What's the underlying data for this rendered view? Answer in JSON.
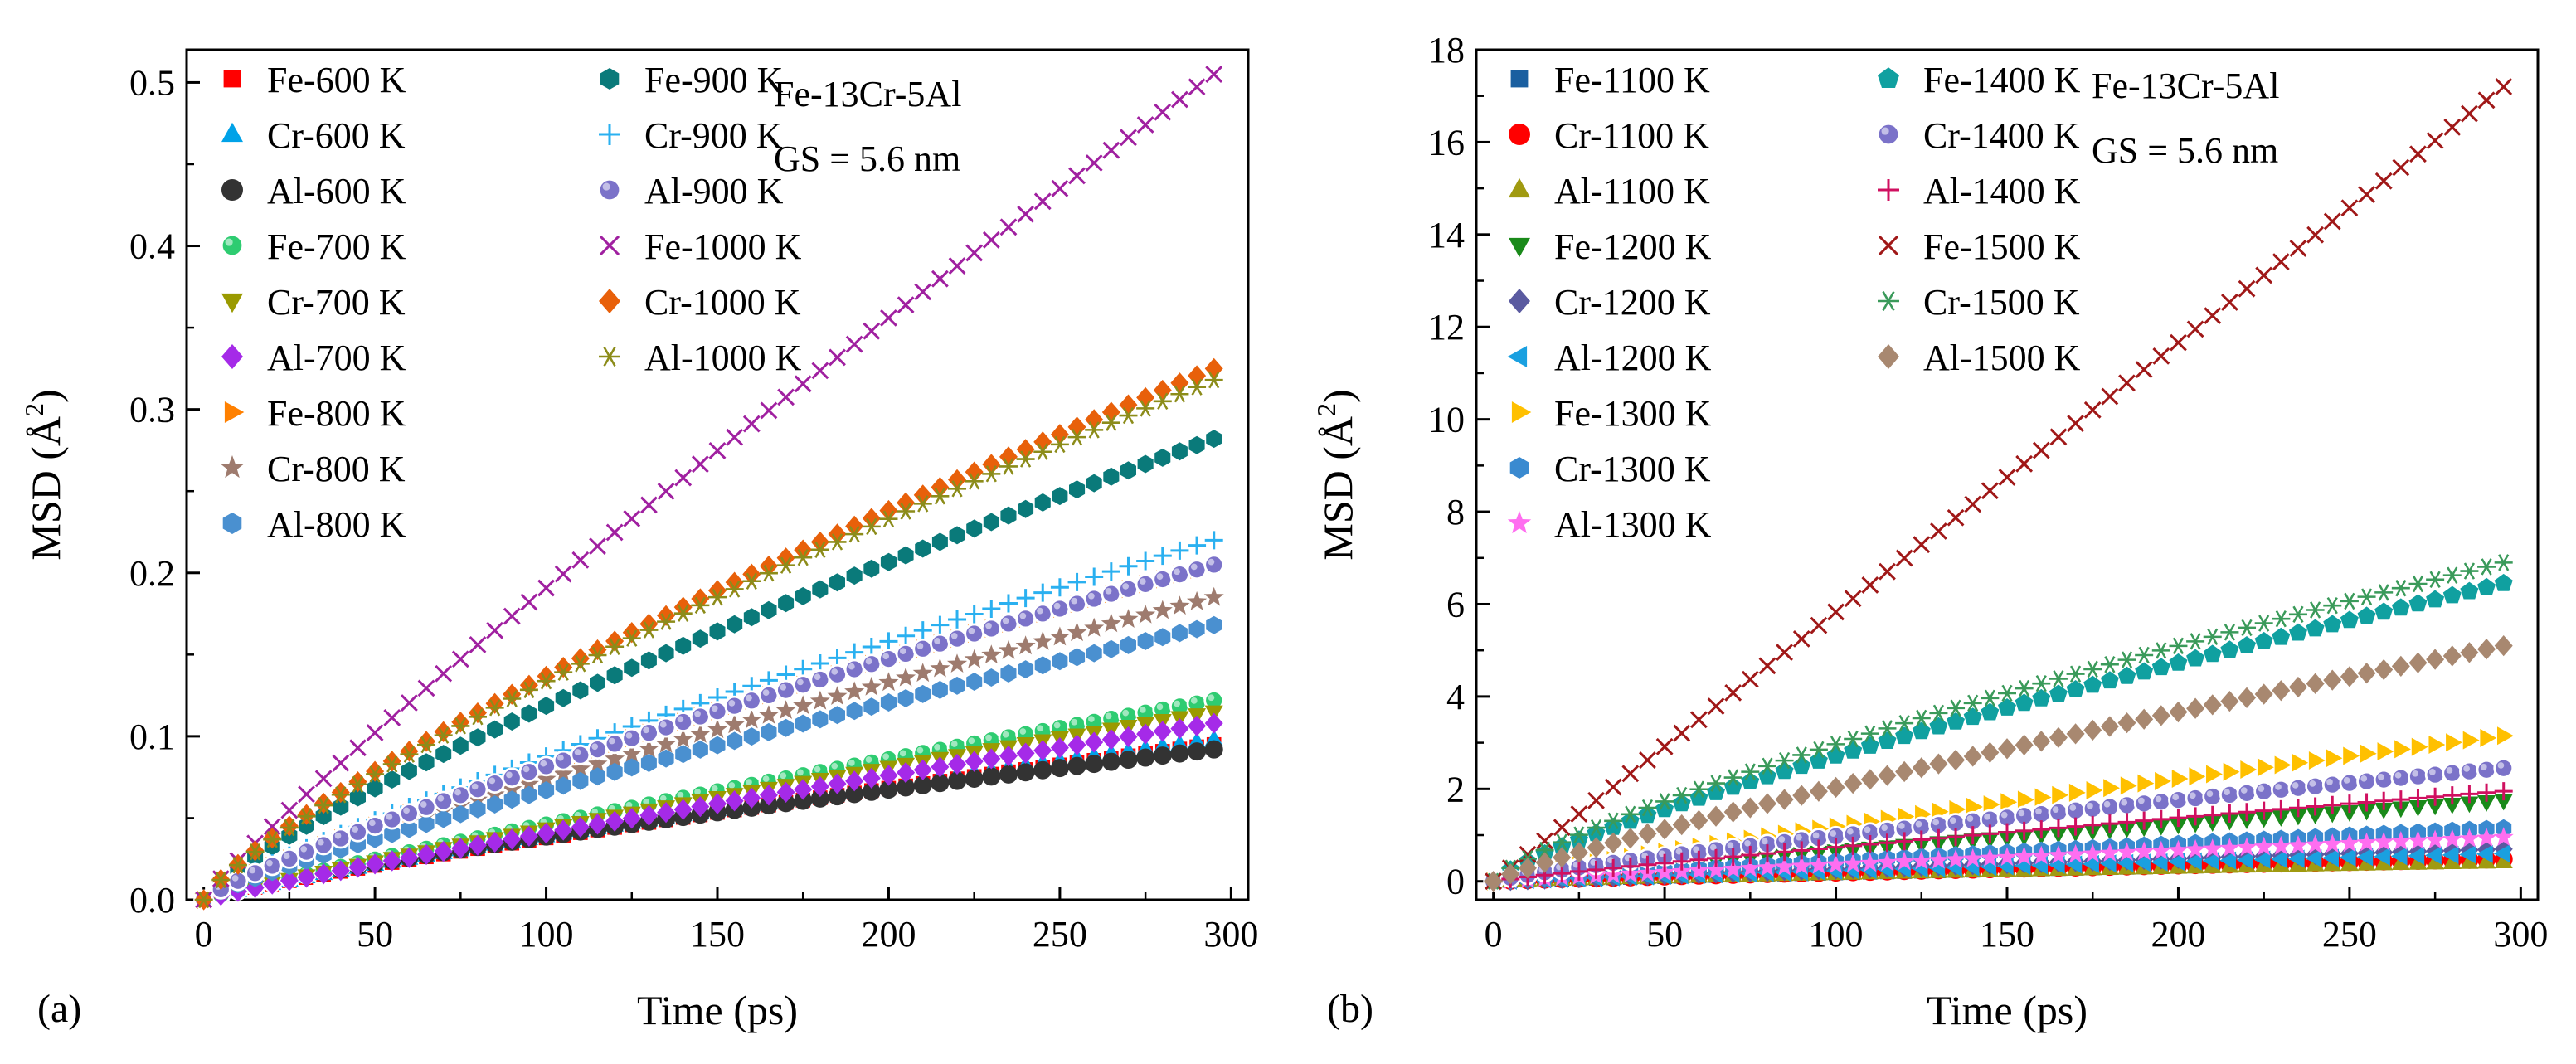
{
  "figure": {
    "panel_labels": [
      "(a)",
      "(b)"
    ]
  },
  "chart_data": [
    {
      "type": "scatter",
      "panel": "(a)",
      "title": "",
      "annotation_lines": [
        "Fe-13Cr-5Al",
        "GS = 5.6 nm"
      ],
      "xlabel": "Time (ps)",
      "ylabel_prefix": "MSD (",
      "ylabel_unit": "Å",
      "ylabel_sup": "2",
      "ylabel_suffix": ")",
      "xlim": [
        -5,
        305
      ],
      "ylim": [
        0,
        0.52
      ],
      "xticks": [
        0,
        50,
        100,
        150,
        200,
        250,
        300
      ],
      "yticks": [
        0.0,
        0.1,
        0.2,
        0.3,
        0.4,
        0.5
      ],
      "ytick_labels": [
        "0.0",
        "0.1",
        "0.2",
        "0.3",
        "0.4",
        "0.5"
      ],
      "x_start": 0,
      "x_end": 295,
      "x_step": 5,
      "legend_position": "top-left",
      "legend_columns": 2,
      "series": [
        {
          "name": "Fe-600 K",
          "marker": "square",
          "color": "#ff0000",
          "final": 0.095,
          "exp": 0.85
        },
        {
          "name": "Cr-600 K",
          "marker": "triangle-up",
          "color": "#00a2e8",
          "final": 0.098,
          "exp": 0.85
        },
        {
          "name": "Al-600 K",
          "marker": "circle",
          "color": "#333333",
          "final": 0.092,
          "exp": 0.8
        },
        {
          "name": "Fe-700 K",
          "marker": "circle-shaded",
          "color": "#2ecc71",
          "final": 0.122,
          "exp": 0.9
        },
        {
          "name": "Cr-700 K",
          "marker": "triangle-down",
          "color": "#9a9a00",
          "final": 0.115,
          "exp": 0.9
        },
        {
          "name": "Al-700 K",
          "marker": "diamond",
          "color": "#a52ae8",
          "final": 0.108,
          "exp": 0.9
        },
        {
          "name": "Fe-800 K",
          "marker": "triangle-right",
          "color": "#ff8000",
          "final": 0.205,
          "exp": 0.85
        },
        {
          "name": "Cr-800 K",
          "marker": "star",
          "color": "#9e7b6e",
          "final": 0.185,
          "exp": 0.85
        },
        {
          "name": "Al-800 K",
          "marker": "hexagon",
          "color": "#4a90d0",
          "final": 0.168,
          "exp": 0.85
        },
        {
          "name": "Fe-900 K",
          "marker": "hexagon",
          "color": "#0a7a7a",
          "final": 0.282,
          "exp": 0.8
        },
        {
          "name": "Cr-900 K",
          "marker": "plus",
          "color": "#2ab0f0",
          "final": 0.22,
          "exp": 0.85
        },
        {
          "name": "Al-900 K",
          "marker": "circle-shaded",
          "color": "#7b72c9",
          "final": 0.205,
          "exp": 0.85
        },
        {
          "name": "Fe-1000 K",
          "marker": "x",
          "color": "#a020a0",
          "final": 0.505,
          "exp": 0.9
        },
        {
          "name": "Cr-1000 K",
          "marker": "diamond",
          "color": "#e8600a",
          "final": 0.325,
          "exp": 0.8
        },
        {
          "name": "Al-1000 K",
          "marker": "asterisk",
          "color": "#8c8c1a",
          "final": 0.318,
          "exp": 0.8
        }
      ]
    },
    {
      "type": "scatter",
      "panel": "(b)",
      "title": "",
      "annotation_lines": [
        "Fe-13Cr-5Al",
        "GS = 5.6 nm"
      ],
      "xlabel": "Time (ps)",
      "ylabel_prefix": "MSD (",
      "ylabel_unit": "Å",
      "ylabel_sup": "2",
      "ylabel_suffix": ")",
      "xlim": [
        -5,
        305
      ],
      "ylim": [
        -0.4,
        18
      ],
      "xticks": [
        0,
        50,
        100,
        150,
        200,
        250,
        300
      ],
      "yticks": [
        0,
        2,
        4,
        6,
        8,
        10,
        12,
        14,
        16,
        18
      ],
      "ytick_labels": [
        "0",
        "2",
        "4",
        "6",
        "8",
        "10",
        "12",
        "14",
        "16",
        "18"
      ],
      "x_start": 0,
      "x_end": 295,
      "x_step": 5,
      "legend_position": "top-left",
      "legend_columns": 2,
      "series": [
        {
          "name": "Fe-1100 K",
          "marker": "square",
          "color": "#1a5fa0",
          "final": 0.45,
          "exp": 0.85
        },
        {
          "name": "Cr-1100 K",
          "marker": "circle",
          "color": "#ff0000",
          "final": 0.48,
          "exp": 0.85
        },
        {
          "name": "Al-1100 K",
          "marker": "triangle-up",
          "color": "#a09a10",
          "final": 0.42,
          "exp": 0.85
        },
        {
          "name": "Fe-1200 K",
          "marker": "triangle-down",
          "color": "#1a8a1a",
          "final": 1.75,
          "exp": 0.9
        },
        {
          "name": "Cr-1200 K",
          "marker": "diamond",
          "color": "#5a5aa0",
          "final": 0.7,
          "exp": 0.9
        },
        {
          "name": "Al-1200 K",
          "marker": "triangle-left",
          "color": "#1aa0e0",
          "final": 0.6,
          "exp": 0.9
        },
        {
          "name": "Fe-1300 K",
          "marker": "triangle-right",
          "color": "#ffc000",
          "final": 3.15,
          "exp": 0.9
        },
        {
          "name": "Cr-1300 K",
          "marker": "hexagon",
          "color": "#3a8ad0",
          "final": 1.15,
          "exp": 0.9
        },
        {
          "name": "Al-1300 K",
          "marker": "star",
          "color": "#ff6ef0",
          "final": 0.95,
          "exp": 0.9
        },
        {
          "name": "Fe-1400 K",
          "marker": "pentagon",
          "color": "#10a0a0",
          "final": 6.45,
          "exp": 0.8
        },
        {
          "name": "Cr-1400 K",
          "marker": "circle-shaded",
          "color": "#7b72c9",
          "final": 2.45,
          "exp": 0.85
        },
        {
          "name": "Al-1400 K",
          "marker": "plus",
          "color": "#d01060",
          "final": 1.95,
          "exp": 0.9
        },
        {
          "name": "Fe-1500 K",
          "marker": "x",
          "color": "#a01818",
          "final": 17.2,
          "exp": 1.0
        },
        {
          "name": "Cr-1500 K",
          "marker": "asterisk",
          "color": "#3a9a5a",
          "final": 6.9,
          "exp": 0.78
        },
        {
          "name": "Al-1500 K",
          "marker": "diamond",
          "color": "#a88870",
          "final": 5.1,
          "exp": 0.85
        }
      ]
    }
  ]
}
